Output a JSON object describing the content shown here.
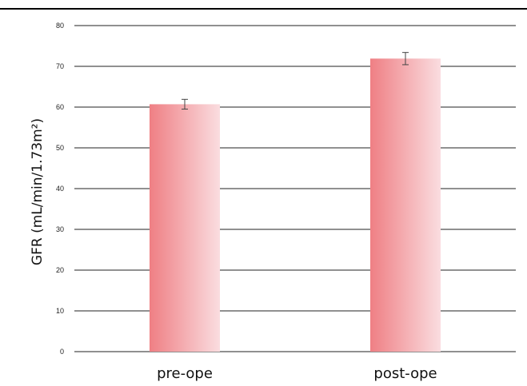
{
  "chart_data": {
    "type": "bar",
    "title": "",
    "xlabel": "",
    "ylabel": "GFR (mL∕min∕1.73m²)",
    "categories": [
      "pre-ope",
      "post-ope"
    ],
    "values": [
      60.7,
      71.9
    ],
    "error": [
      1.2,
      1.5
    ],
    "ylim": [
      0,
      80
    ],
    "yticks": [
      0,
      10,
      20,
      30,
      40,
      50,
      60,
      70,
      80
    ],
    "grid": true,
    "legend": "none",
    "colors": {
      "bar_start": "#ef7f84",
      "bar_end": "#fadde0",
      "grid": "#222222",
      "top_rule": "#000000",
      "errorbar": "#444444"
    }
  }
}
